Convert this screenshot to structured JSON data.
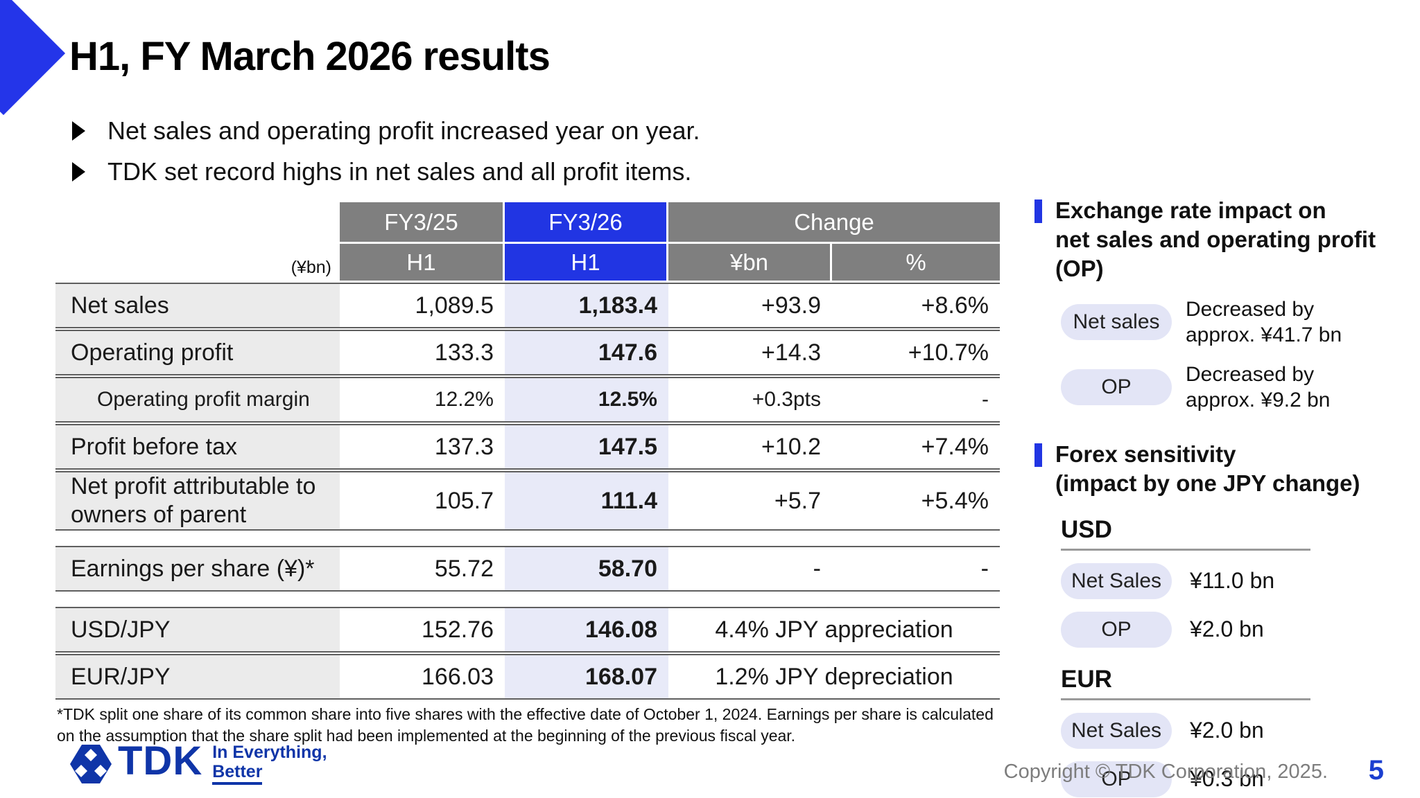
{
  "slide": {
    "title": "H1, FY March 2026 results",
    "bullets": [
      "Net sales and operating profit increased year on year.",
      "TDK set record highs in net sales and all profit items."
    ],
    "footnote": "*TDK split one share of its common share into five shares with the effective date of October 1, 2024. Earnings per share is calculated on the assumption that the share split had been implemented at the beginning of the previous fiscal year."
  },
  "table": {
    "unit_label": "(¥bn)",
    "header": {
      "fy25": "FY3/25",
      "fy26": "FY3/26",
      "change": "Change",
      "fy25_sub": "H1",
      "fy26_sub": "H1",
      "ybn": "¥bn",
      "pct": "%"
    },
    "rows": [
      {
        "label": "Net sales",
        "fy25": "1,089.5",
        "fy26": "1,183.4",
        "ybn": "+93.9",
        "pct": "+8.6%"
      },
      {
        "label": "Operating profit",
        "fy25": "133.3",
        "fy26": "147.6",
        "ybn": "+14.3",
        "pct": "+10.7%"
      },
      {
        "label": "Operating profit margin",
        "indent": true,
        "small": true,
        "fy25": "12.2%",
        "fy26": "12.5%",
        "ybn": "+0.3pts",
        "pct": "-"
      },
      {
        "label": "Profit before tax",
        "fy25": "137.3",
        "fy26": "147.5",
        "ybn": "+10.2",
        "pct": "+7.4%"
      },
      {
        "label": "Net profit attributable to owners of parent",
        "tall": true,
        "fy25": "105.7",
        "fy26": "111.4",
        "ybn": "+5.7",
        "pct": "+5.4%"
      },
      {
        "label": "Earnings per share (¥)*",
        "gap_before": true,
        "fy25": "55.72",
        "fy26": "58.70",
        "ybn": "-",
        "pct": "-"
      },
      {
        "label": "USD/JPY",
        "gap_before": true,
        "fy25": "152.76",
        "fy26": "146.08",
        "change_merged": "4.4% JPY appreciation"
      },
      {
        "label": "EUR/JPY",
        "fy25": "166.03",
        "fy26": "168.07",
        "change_merged": "1.2% JPY depreciation"
      }
    ]
  },
  "side_panel": {
    "exchange_impact": {
      "heading_lines": [
        "Exchange rate impact on",
        "net sales and operating profit",
        "(OP)"
      ],
      "items": [
        {
          "tag": "Net sales",
          "text": "Decreased by approx. ¥41.7 bn"
        },
        {
          "tag": "OP",
          "text": "Decreased by approx. ¥9.2 bn"
        }
      ]
    },
    "forex_sensitivity": {
      "heading_lines": [
        "Forex sensitivity",
        "(impact by one JPY change)"
      ],
      "groups": [
        {
          "currency": "USD",
          "items": [
            {
              "tag": "Net Sales",
              "value": "¥11.0 bn"
            },
            {
              "tag": "OP",
              "value": "¥2.0 bn"
            }
          ]
        },
        {
          "currency": "EUR",
          "items": [
            {
              "tag": "Net Sales",
              "value": "¥2.0 bn"
            },
            {
              "tag": "OP",
              "value": "¥0.3 bn"
            }
          ]
        }
      ]
    }
  },
  "footer": {
    "logo_text": "TDK",
    "logo_tagline_line1": "In Everything,",
    "logo_tagline_line2": "Better",
    "copyright": "Copyright © TDK Corporation, 2025.",
    "page_number": "5"
  },
  "colors": {
    "accent_blue": "#2135e3",
    "brand_blue": "#0f35a8",
    "header_gray": "#7f7f7f",
    "highlight_column": "#e8eaf8",
    "pill_background": "#e3e5f6",
    "label_background": "#ebebeb",
    "page_number_blue": "#1b3fd0"
  }
}
